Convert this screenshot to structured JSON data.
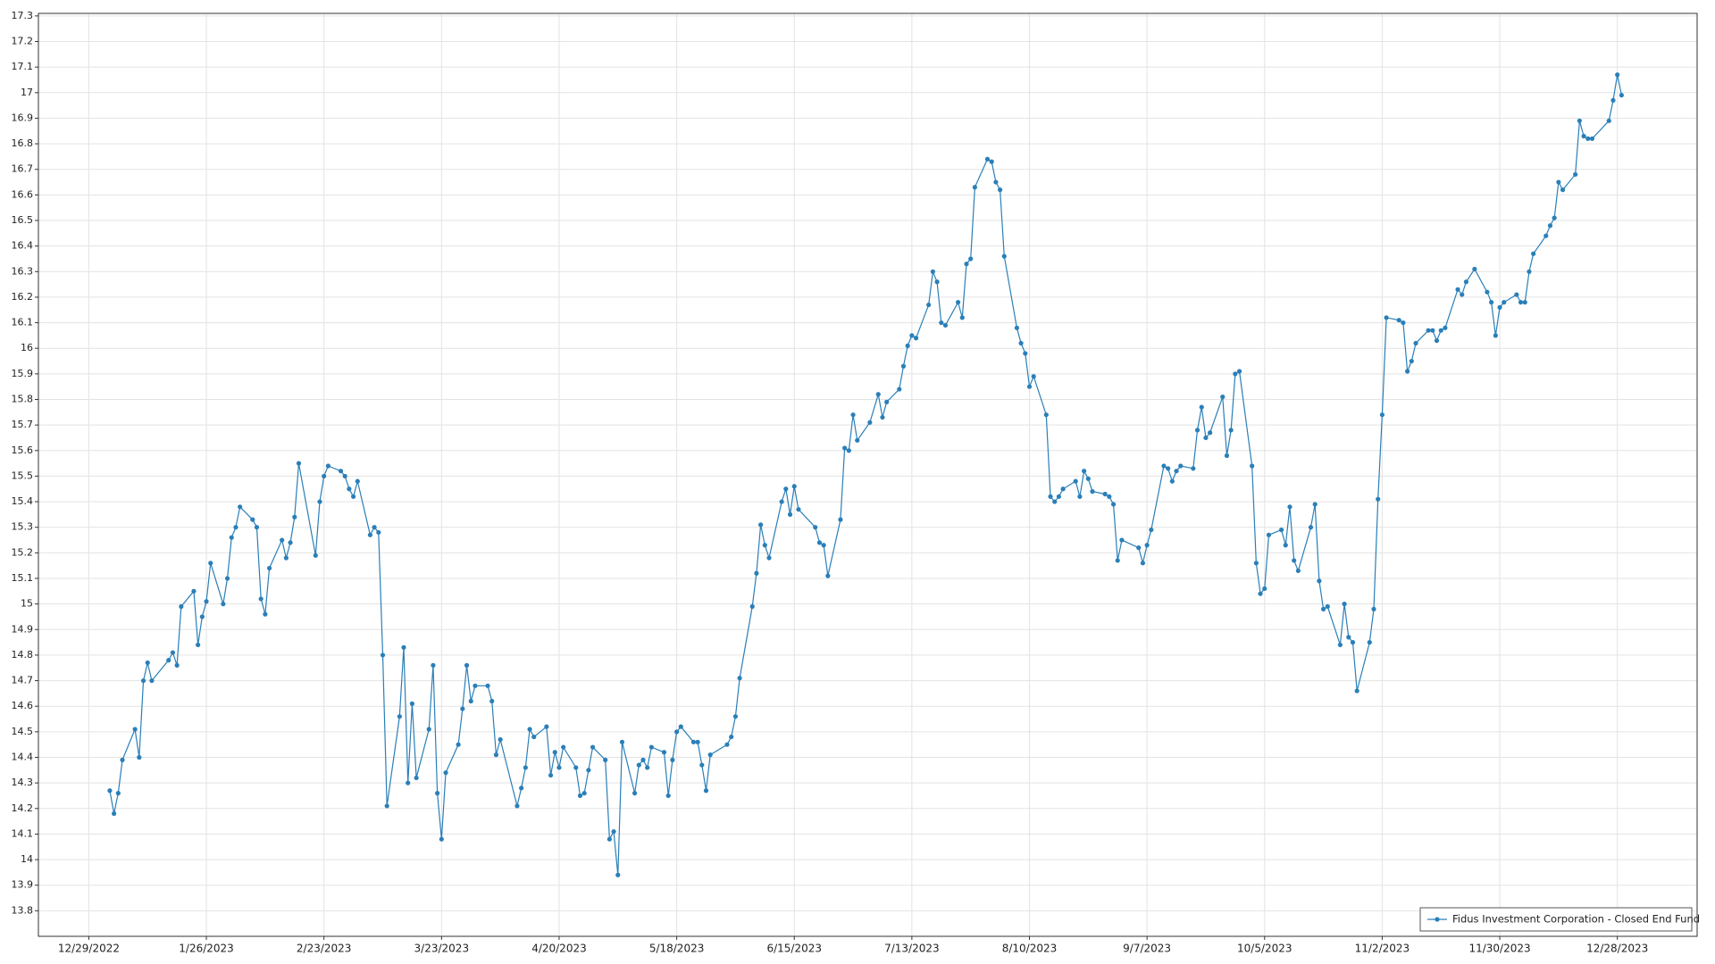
{
  "chart_data": {
    "type": "line",
    "x": [
      "1/3/2023",
      "1/4/2023",
      "1/5/2023",
      "1/6/2023",
      "1/9/2023",
      "1/10/2023",
      "1/11/2023",
      "1/12/2023",
      "1/13/2023",
      "1/17/2023",
      "1/18/2023",
      "1/19/2023",
      "1/20/2023",
      "1/23/2023",
      "1/24/2023",
      "1/25/2023",
      "1/26/2023",
      "1/27/2023",
      "1/30/2023",
      "1/31/2023",
      "2/1/2023",
      "2/2/2023",
      "2/3/2023",
      "2/6/2023",
      "2/7/2023",
      "2/8/2023",
      "2/9/2023",
      "2/10/2023",
      "2/13/2023",
      "2/14/2023",
      "2/15/2023",
      "2/16/2023",
      "2/17/2023",
      "2/21/2023",
      "2/22/2023",
      "2/23/2023",
      "2/24/2023",
      "2/27/2023",
      "2/28/2023",
      "3/1/2023",
      "3/2/2023",
      "3/3/2023",
      "3/6/2023",
      "3/7/2023",
      "3/8/2023",
      "3/9/2023",
      "3/10/2023",
      "3/13/2023",
      "3/14/2023",
      "3/15/2023",
      "3/16/2023",
      "3/17/2023",
      "3/20/2023",
      "3/21/2023",
      "3/22/2023",
      "3/23/2023",
      "3/24/2023",
      "3/27/2023",
      "3/28/2023",
      "3/29/2023",
      "3/30/2023",
      "3/31/2023",
      "4/3/2023",
      "4/4/2023",
      "4/5/2023",
      "4/6/2023",
      "4/10/2023",
      "4/11/2023",
      "4/12/2023",
      "4/13/2023",
      "4/14/2023",
      "4/17/2023",
      "4/18/2023",
      "4/19/2023",
      "4/20/2023",
      "4/21/2023",
      "4/24/2023",
      "4/25/2023",
      "4/26/2023",
      "4/27/2023",
      "4/28/2023",
      "5/1/2023",
      "5/2/2023",
      "5/3/2023",
      "5/4/2023",
      "5/5/2023",
      "5/8/2023",
      "5/9/2023",
      "5/10/2023",
      "5/11/2023",
      "5/12/2023",
      "5/15/2023",
      "5/16/2023",
      "5/17/2023",
      "5/18/2023",
      "5/19/2023",
      "5/22/2023",
      "5/23/2023",
      "5/24/2023",
      "5/25/2023",
      "5/26/2023",
      "5/30/2023",
      "5/31/2023",
      "6/1/2023",
      "6/2/2023",
      "6/5/2023",
      "6/6/2023",
      "6/7/2023",
      "6/8/2023",
      "6/9/2023",
      "6/12/2023",
      "6/13/2023",
      "6/14/2023",
      "6/15/2023",
      "6/16/2023",
      "6/20/2023",
      "6/21/2023",
      "6/22/2023",
      "6/23/2023",
      "6/26/2023",
      "6/27/2023",
      "6/28/2023",
      "6/29/2023",
      "6/30/2023",
      "7/3/2023",
      "7/5/2023",
      "7/6/2023",
      "7/7/2023",
      "7/10/2023",
      "7/11/2023",
      "7/12/2023",
      "7/13/2023",
      "7/14/2023",
      "7/17/2023",
      "7/18/2023",
      "7/19/2023",
      "7/20/2023",
      "7/21/2023",
      "7/24/2023",
      "7/25/2023",
      "7/26/2023",
      "7/27/2023",
      "7/28/2023",
      "7/31/2023",
      "8/1/2023",
      "8/2/2023",
      "8/3/2023",
      "8/4/2023",
      "8/7/2023",
      "8/8/2023",
      "8/9/2023",
      "8/10/2023",
      "8/11/2023",
      "8/14/2023",
      "8/15/2023",
      "8/16/2023",
      "8/17/2023",
      "8/18/2023",
      "8/21/2023",
      "8/22/2023",
      "8/23/2023",
      "8/24/2023",
      "8/25/2023",
      "8/28/2023",
      "8/29/2023",
      "8/30/2023",
      "8/31/2023",
      "9/1/2023",
      "9/5/2023",
      "9/6/2023",
      "9/7/2023",
      "9/8/2023",
      "9/11/2023",
      "9/12/2023",
      "9/13/2023",
      "9/14/2023",
      "9/15/2023",
      "9/18/2023",
      "9/19/2023",
      "9/20/2023",
      "9/21/2023",
      "9/22/2023",
      "9/25/2023",
      "9/26/2023",
      "9/27/2023",
      "9/28/2023",
      "9/29/2023",
      "10/2/2023",
      "10/3/2023",
      "10/4/2023",
      "10/5/2023",
      "10/6/2023",
      "10/9/2023",
      "10/10/2023",
      "10/11/2023",
      "10/12/2023",
      "10/13/2023",
      "10/16/2023",
      "10/17/2023",
      "10/18/2023",
      "10/19/2023",
      "10/20/2023",
      "10/23/2023",
      "10/24/2023",
      "10/25/2023",
      "10/26/2023",
      "10/27/2023",
      "10/30/2023",
      "10/31/2023",
      "11/1/2023",
      "11/2/2023",
      "11/3/2023",
      "11/6/2023",
      "11/7/2023",
      "11/8/2023",
      "11/9/2023",
      "11/10/2023",
      "11/13/2023",
      "11/14/2023",
      "11/15/2023",
      "11/16/2023",
      "11/17/2023",
      "11/20/2023",
      "11/21/2023",
      "11/22/2023",
      "11/24/2023",
      "11/27/2023",
      "11/28/2023",
      "11/29/2023",
      "11/30/2023",
      "12/1/2023",
      "12/4/2023",
      "12/5/2023",
      "12/6/2023",
      "12/7/2023",
      "12/8/2023",
      "12/11/2023",
      "12/12/2023",
      "12/13/2023",
      "12/14/2023",
      "12/15/2023",
      "12/18/2023",
      "12/19/2023",
      "12/20/2023",
      "12/21/2023",
      "12/22/2023",
      "12/26/2023",
      "12/27/2023",
      "12/28/2023",
      "12/29/2023"
    ],
    "series": [
      {
        "name": "Fidus Investment Corporation - Closed End Fund",
        "color": "#2a7fb8",
        "values": [
          14.27,
          14.18,
          14.26,
          14.39,
          14.51,
          14.4,
          14.7,
          14.77,
          14.7,
          14.78,
          14.81,
          14.76,
          14.99,
          15.05,
          14.84,
          14.95,
          15.01,
          15.16,
          15.0,
          15.1,
          15.26,
          15.3,
          15.38,
          15.33,
          15.3,
          15.02,
          14.96,
          15.14,
          15.25,
          15.18,
          15.24,
          15.34,
          15.55,
          15.19,
          15.4,
          15.5,
          15.54,
          15.52,
          15.5,
          15.45,
          15.42,
          15.48,
          15.27,
          15.3,
          15.28,
          14.8,
          14.21,
          14.56,
          14.83,
          14.3,
          14.61,
          14.32,
          14.51,
          14.76,
          14.26,
          14.08,
          14.34,
          14.45,
          14.59,
          14.76,
          14.62,
          14.68,
          14.68,
          14.62,
          14.41,
          14.47,
          14.21,
          14.28,
          14.36,
          14.51,
          14.48,
          14.52,
          14.33,
          14.42,
          14.36,
          14.44,
          14.36,
          14.25,
          14.26,
          14.35,
          14.44,
          14.39,
          14.08,
          14.11,
          13.94,
          14.46,
          14.26,
          14.37,
          14.39,
          14.36,
          14.44,
          14.42,
          14.25,
          14.39,
          14.5,
          14.52,
          14.46,
          14.46,
          14.37,
          14.27,
          14.41,
          14.45,
          14.48,
          14.56,
          14.71,
          14.99,
          15.12,
          15.31,
          15.23,
          15.18,
          15.4,
          15.45,
          15.35,
          15.46,
          15.37,
          15.3,
          15.24,
          15.23,
          15.11,
          15.33,
          15.61,
          15.6,
          15.74,
          15.64,
          15.71,
          15.82,
          15.73,
          15.79,
          15.84,
          15.93,
          16.01,
          16.05,
          16.04,
          16.17,
          16.3,
          16.26,
          16.1,
          16.09,
          16.18,
          16.12,
          16.33,
          16.35,
          16.63,
          16.74,
          16.73,
          16.65,
          16.62,
          16.36,
          16.08,
          16.02,
          15.98,
          15.85,
          15.89,
          15.74,
          15.42,
          15.4,
          15.42,
          15.45,
          15.48,
          15.42,
          15.52,
          15.49,
          15.44,
          15.43,
          15.42,
          15.39,
          15.17,
          15.25,
          15.22,
          15.16,
          15.23,
          15.29,
          15.54,
          15.53,
          15.48,
          15.52,
          15.54,
          15.53,
          15.68,
          15.77,
          15.65,
          15.67,
          15.81,
          15.58,
          15.68,
          15.9,
          15.91,
          15.54,
          15.16,
          15.04,
          15.06,
          15.27,
          15.29,
          15.23,
          15.38,
          15.17,
          15.13,
          15.3,
          15.39,
          15.09,
          14.98,
          14.99,
          14.84,
          15.0,
          14.87,
          14.85,
          14.66,
          14.85,
          14.98,
          15.41,
          15.74,
          16.12,
          16.11,
          16.1,
          15.91,
          15.95,
          16.02,
          16.07,
          16.07,
          16.03,
          16.07,
          16.08,
          16.23,
          16.21,
          16.26,
          16.31,
          16.22,
          16.18,
          16.05,
          16.16,
          16.18,
          16.21,
          16.18,
          16.18,
          16.3,
          16.37,
          16.44,
          16.48,
          16.51,
          16.65,
          16.62,
          16.68,
          16.89,
          16.83,
          16.82,
          16.82,
          16.89,
          16.97,
          17.07,
          16.99
        ]
      }
    ],
    "xlim": [
      "12/17/2022",
      "1/16/2024"
    ],
    "xticks": [
      "12/29/2022",
      "1/26/2023",
      "2/23/2023",
      "3/23/2023",
      "4/20/2023",
      "5/18/2023",
      "6/15/2023",
      "7/13/2023",
      "8/10/2023",
      "9/7/2023",
      "10/5/2023",
      "11/2/2023",
      "11/30/2023",
      "12/28/2023"
    ],
    "ylim": [
      13.7,
      17.31
    ],
    "yticks": [
      13.8,
      13.9,
      14,
      14.1,
      14.2,
      14.3,
      14.4,
      14.5,
      14.6,
      14.7,
      14.8,
      14.9,
      15,
      15.1,
      15.2,
      15.3,
      15.4,
      15.5,
      15.6,
      15.7,
      15.8,
      15.9,
      16,
      16.1,
      16.2,
      16.3,
      16.4,
      16.5,
      16.6,
      16.7,
      16.8,
      16.9,
      17,
      17.1,
      17.2,
      17.3
    ],
    "grid": true,
    "legend": "bottom-right"
  }
}
